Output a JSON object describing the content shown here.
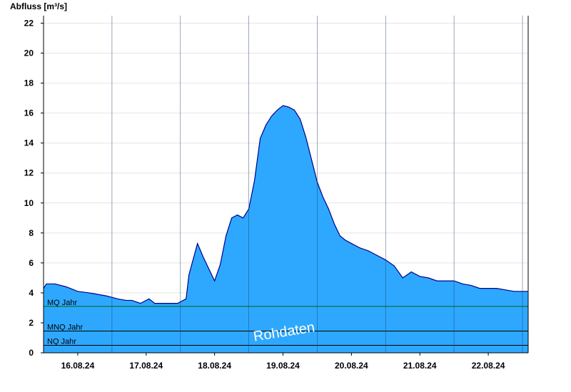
{
  "chart_data": {
    "type": "area",
    "ylabel": "Abfluss [m³/s]",
    "ylim": [
      0,
      22.5
    ],
    "xlim": [
      "2024-08-15T12:00",
      "2024-08-22T14:00"
    ],
    "y_ticks": [
      0,
      2,
      4,
      6,
      8,
      10,
      12,
      14,
      16,
      18,
      20,
      22
    ],
    "x_ticks": [
      {
        "x": "2024-08-16T00:00",
        "label": "16.08.24"
      },
      {
        "x": "2024-08-17T00:00",
        "label": "17.08.24"
      },
      {
        "x": "2024-08-18T00:00",
        "label": "18.08.24"
      },
      {
        "x": "2024-08-19T00:00",
        "label": "19.08.24"
      },
      {
        "x": "2024-08-20T00:00",
        "label": "20.08.24"
      },
      {
        "x": "2024-08-21T00:00",
        "label": "21.08.24"
      },
      {
        "x": "2024-08-22T00:00",
        "label": "22.08.24"
      }
    ],
    "grid": true,
    "fill_color": "#2ea8ff",
    "line_color": "#00008b",
    "reference_lines": [
      {
        "label": "MQ Jahr",
        "value": 3.1,
        "color": "#006400"
      },
      {
        "label": "MNQ Jahr",
        "value": 1.45,
        "color": "#000000"
      },
      {
        "label": "NQ Jahr",
        "value": 0.5,
        "color": "#000000"
      }
    ],
    "watermark": "Rohdaten",
    "series": [
      {
        "x": [
          "2024-08-15T12:00",
          "2024-08-15T13:00",
          "2024-08-15T16:00",
          "2024-08-15T20:00",
          "2024-08-16T00:00",
          "2024-08-16T04:00",
          "2024-08-16T07:00",
          "2024-08-16T10:00",
          "2024-08-16T14:00",
          "2024-08-16T17:00",
          "2024-08-16T19:00",
          "2024-08-16T22:00",
          "2024-08-17T01:00",
          "2024-08-17T03:00",
          "2024-08-17T05:00",
          "2024-08-17T08:00",
          "2024-08-17T11:00",
          "2024-08-17T14:00",
          "2024-08-17T15:00",
          "2024-08-17T18:00",
          "2024-08-17T20:00",
          "2024-08-17T22:00",
          "2024-08-18T00:00",
          "2024-08-18T02:00",
          "2024-08-18T04:00",
          "2024-08-18T06:00",
          "2024-08-18T08:00",
          "2024-08-18T10:00",
          "2024-08-18T12:00",
          "2024-08-18T14:00",
          "2024-08-18T16:00",
          "2024-08-18T18:00",
          "2024-08-18T20:00",
          "2024-08-18T22:00",
          "2024-08-19T00:00",
          "2024-08-19T02:00",
          "2024-08-19T04:00",
          "2024-08-19T06:00",
          "2024-08-19T08:00",
          "2024-08-19T10:00",
          "2024-08-19T12:00",
          "2024-08-19T14:00",
          "2024-08-19T16:00",
          "2024-08-19T18:00",
          "2024-08-19T20:00",
          "2024-08-19T22:00",
          "2024-08-20T00:00",
          "2024-08-20T03:00",
          "2024-08-20T06:00",
          "2024-08-20T09:00",
          "2024-08-20T12:00",
          "2024-08-20T15:00",
          "2024-08-20T18:00",
          "2024-08-20T21:00",
          "2024-08-21T00:00",
          "2024-08-21T03:00",
          "2024-08-21T06:00",
          "2024-08-21T09:00",
          "2024-08-21T12:00",
          "2024-08-21T15:00",
          "2024-08-21T18:00",
          "2024-08-21T21:00",
          "2024-08-22T00:00",
          "2024-08-22T03:00",
          "2024-08-22T06:00",
          "2024-08-22T09:00",
          "2024-08-22T12:00",
          "2024-08-22T14:00"
        ],
        "values": [
          4.3,
          4.6,
          4.6,
          4.4,
          4.1,
          4.0,
          3.9,
          3.8,
          3.6,
          3.5,
          3.5,
          3.3,
          3.6,
          3.3,
          3.3,
          3.3,
          3.3,
          3.6,
          5.2,
          7.3,
          6.4,
          5.6,
          4.8,
          5.9,
          7.8,
          9.0,
          9.2,
          9.0,
          9.6,
          11.5,
          14.3,
          15.2,
          15.8,
          16.2,
          16.5,
          16.4,
          16.2,
          15.6,
          14.4,
          12.9,
          11.4,
          10.4,
          9.6,
          8.6,
          7.8,
          7.5,
          7.3,
          7.0,
          6.8,
          6.5,
          6.2,
          5.8,
          5.0,
          5.4,
          5.1,
          5.0,
          4.8,
          4.8,
          4.8,
          4.6,
          4.5,
          4.3,
          4.3,
          4.3,
          4.2,
          4.1,
          4.1,
          4.1
        ]
      }
    ]
  }
}
